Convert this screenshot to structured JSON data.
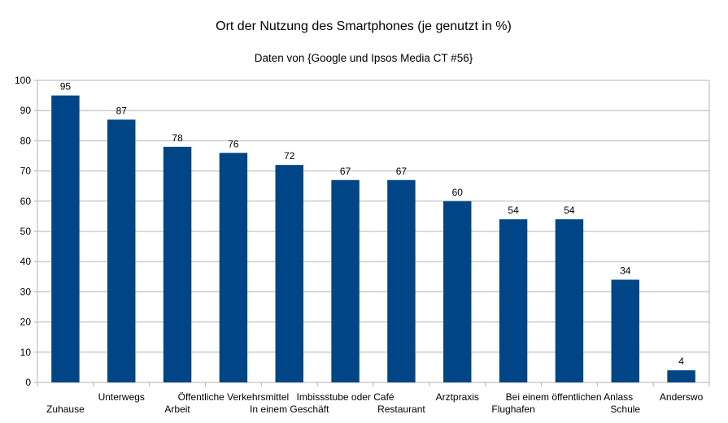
{
  "chart_data": {
    "type": "bar",
    "title": "Ort der Nutzung des Smartphones (je genutzt in %)",
    "subtitle": "Daten von {Google und Ipsos Media CT #56}",
    "xlabel": "",
    "ylabel": "",
    "ylim": [
      0,
      100
    ],
    "yticks": [
      "0",
      "10",
      "20",
      "30",
      "40",
      "50",
      "60",
      "70",
      "80",
      "90",
      "100"
    ],
    "grid": true,
    "legend": "none",
    "bar_color": "#004586",
    "categories": [
      "Zuhause",
      "Unterwegs",
      "Arbeit",
      "Öffentliche Verkehrsmittel",
      "In einem Geschäft",
      "Imbissstube oder Café",
      "Restaurant",
      "Arztpraxis",
      "Flughafen",
      "Bei einem öffentlichen Anlass",
      "Schule",
      "Anderswo"
    ],
    "values": [
      95,
      87,
      78,
      76,
      72,
      67,
      67,
      60,
      54,
      54,
      34,
      4
    ]
  }
}
